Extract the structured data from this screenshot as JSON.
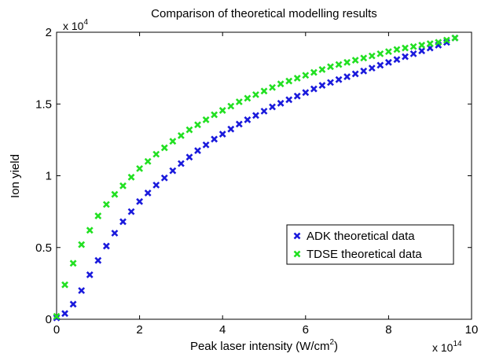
{
  "chart_data": {
    "type": "scatter",
    "title": "Comparison of theoretical modelling results",
    "xlabel": "Peak laser intensity (W/cm",
    "xlabel_sup": "2",
    "xlabel_close": ")",
    "ylabel": "Ion yield",
    "xlim": [
      0,
      10
    ],
    "ylim": [
      0,
      2
    ],
    "x_scale_base": "x 10",
    "x_scale_exp": "14",
    "y_scale_base": "x 10",
    "y_scale_exp": "4",
    "x_ticks": [
      0,
      2,
      4,
      6,
      8,
      10
    ],
    "x_tick_labels": [
      "0",
      "2",
      "4",
      "6",
      "8",
      "10"
    ],
    "y_ticks": [
      0,
      0.5,
      1,
      1.5,
      2
    ],
    "y_tick_labels": [
      "0",
      "0.5",
      "1",
      "1.5",
      "2"
    ],
    "grid": false,
    "legend_position": "center-right",
    "series": [
      {
        "name": "ADK theoretical data",
        "color": "#1a1adc",
        "marker": "x",
        "x": [
          0,
          0.2,
          0.4,
          0.6,
          0.8,
          1.0,
          1.2,
          1.4,
          1.6,
          1.8,
          2.0,
          2.2,
          2.4,
          2.6,
          2.8,
          3.0,
          3.2,
          3.4,
          3.6,
          3.8,
          4.0,
          4.2,
          4.4,
          4.6,
          4.8,
          5.0,
          5.2,
          5.4,
          5.6,
          5.8,
          6.0,
          6.2,
          6.4,
          6.6,
          6.8,
          7.0,
          7.2,
          7.4,
          7.6,
          7.8,
          8.0,
          8.2,
          8.4,
          8.6,
          8.8,
          9.0,
          9.2,
          9.4,
          9.6
        ],
        "y": [
          0.01,
          0.04,
          0.105,
          0.2,
          0.31,
          0.41,
          0.51,
          0.6,
          0.68,
          0.75,
          0.82,
          0.88,
          0.935,
          0.985,
          1.035,
          1.085,
          1.13,
          1.175,
          1.215,
          1.255,
          1.29,
          1.325,
          1.36,
          1.39,
          1.42,
          1.45,
          1.48,
          1.505,
          1.53,
          1.555,
          1.58,
          1.605,
          1.63,
          1.65,
          1.67,
          1.69,
          1.71,
          1.73,
          1.75,
          1.77,
          1.79,
          1.81,
          1.83,
          1.85,
          1.87,
          1.89,
          1.91,
          1.93,
          1.96
        ]
      },
      {
        "name": "TDSE theoretical data",
        "color": "#22e022",
        "marker": "x",
        "x": [
          0,
          0.2,
          0.4,
          0.6,
          0.8,
          1.0,
          1.2,
          1.4,
          1.6,
          1.8,
          2.0,
          2.2,
          2.4,
          2.6,
          2.8,
          3.0,
          3.2,
          3.4,
          3.6,
          3.8,
          4.0,
          4.2,
          4.4,
          4.6,
          4.8,
          5.0,
          5.2,
          5.4,
          5.6,
          5.8,
          6.0,
          6.2,
          6.4,
          6.6,
          6.8,
          7.0,
          7.2,
          7.4,
          7.6,
          7.8,
          8.0,
          8.2,
          8.4,
          8.6,
          8.8,
          9.0,
          9.2,
          9.4,
          9.6
        ],
        "y": [
          0.02,
          0.24,
          0.39,
          0.52,
          0.62,
          0.72,
          0.8,
          0.87,
          0.93,
          0.99,
          1.05,
          1.1,
          1.15,
          1.195,
          1.24,
          1.28,
          1.32,
          1.355,
          1.39,
          1.425,
          1.455,
          1.485,
          1.515,
          1.54,
          1.565,
          1.59,
          1.615,
          1.64,
          1.66,
          1.68,
          1.7,
          1.72,
          1.74,
          1.76,
          1.775,
          1.79,
          1.805,
          1.82,
          1.835,
          1.85,
          1.865,
          1.88,
          1.89,
          1.9,
          1.91,
          1.92,
          1.93,
          1.945,
          1.96
        ]
      }
    ]
  }
}
